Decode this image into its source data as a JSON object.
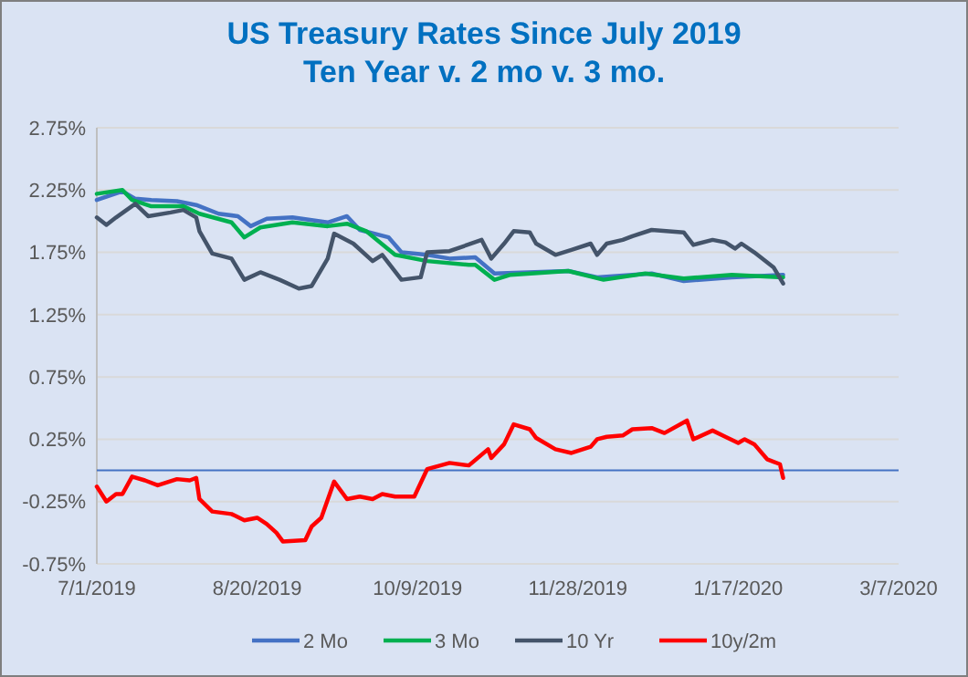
{
  "chart_data": {
    "type": "line",
    "title": "US Treasury Rates Since July 2019",
    "subtitle": "Ten Year v. 2 mo v. 3 mo.",
    "xlim": [
      "2019-07-01",
      "2020-03-07"
    ],
    "xticks": [
      {
        "value": "2019-07-01",
        "label": "7/1/2019"
      },
      {
        "value": "2019-08-20",
        "label": "8/20/2019"
      },
      {
        "value": "2019-10-09",
        "label": "10/9/2019"
      },
      {
        "value": "2019-11-28",
        "label": "11/28/2019"
      },
      {
        "value": "2020-01-17",
        "label": "1/17/2020"
      },
      {
        "value": "2020-03-07",
        "label": "3/7/2020"
      }
    ],
    "ylim": [
      -0.75,
      2.75
    ],
    "yticks": [
      {
        "value": -0.75,
        "label": "-0.75%"
      },
      {
        "value": -0.25,
        "label": "-0.25%"
      },
      {
        "value": 0.25,
        "label": "0.25%"
      },
      {
        "value": 0.75,
        "label": "0.75%"
      },
      {
        "value": 1.25,
        "label": "1.25%"
      },
      {
        "value": 1.75,
        "label": "1.75%"
      },
      {
        "value": 2.25,
        "label": "2.25%"
      },
      {
        "value": 2.75,
        "label": "2.75%"
      }
    ],
    "grid": "y",
    "legend": "bottom",
    "marker": "none",
    "line_style": "solid",
    "ref_lines": [
      {
        "axis": "y",
        "value": 0,
        "color": "#4472c4"
      }
    ],
    "series": [
      {
        "name": "2 Mo",
        "color": "#4472c4",
        "x": [
          "2019-07-01",
          "2019-07-09",
          "2019-07-13",
          "2019-07-18",
          "2019-07-26",
          "2019-08-01",
          "2019-08-08",
          "2019-08-14",
          "2019-08-18",
          "2019-08-23",
          "2019-08-31",
          "2019-09-11",
          "2019-09-17",
          "2019-09-21",
          "2019-09-30",
          "2019-10-04",
          "2019-10-12",
          "2019-10-19",
          "2019-10-27",
          "2019-11-02",
          "2019-11-25",
          "2019-12-04",
          "2019-12-21",
          "2019-12-31",
          "2020-01-15",
          "2020-01-31"
        ],
        "values": [
          2.17,
          2.24,
          2.18,
          2.17,
          2.16,
          2.13,
          2.06,
          2.04,
          1.96,
          2.02,
          2.03,
          1.99,
          2.04,
          1.93,
          1.87,
          1.75,
          1.73,
          1.7,
          1.71,
          1.58,
          1.6,
          1.55,
          1.58,
          1.52,
          1.55,
          1.57
        ]
      },
      {
        "name": "3 Mo",
        "color": "#00b050",
        "x": [
          "2019-07-01",
          "2019-07-09",
          "2019-07-12",
          "2019-07-18",
          "2019-07-28",
          "2019-08-02",
          "2019-08-12",
          "2019-08-16",
          "2019-08-21",
          "2019-08-31",
          "2019-09-11",
          "2019-09-17",
          "2019-09-23",
          "2019-10-02",
          "2019-10-12",
          "2019-10-25",
          "2019-10-27",
          "2019-11-02",
          "2019-11-07",
          "2019-11-25",
          "2019-12-06",
          "2019-12-19",
          "2019-12-31",
          "2020-01-15",
          "2020-01-31"
        ],
        "values": [
          2.22,
          2.25,
          2.17,
          2.12,
          2.12,
          2.06,
          1.99,
          1.87,
          1.95,
          1.99,
          1.96,
          1.98,
          1.92,
          1.73,
          1.68,
          1.65,
          1.65,
          1.53,
          1.57,
          1.6,
          1.53,
          1.58,
          1.54,
          1.57,
          1.55
        ]
      },
      {
        "name": "10 Yr",
        "color": "#44546a",
        "x": [
          "2019-07-01",
          "2019-07-04",
          "2019-07-07",
          "2019-07-13",
          "2019-07-17",
          "2019-07-24",
          "2019-07-28",
          "2019-08-01",
          "2019-08-02",
          "2019-08-06",
          "2019-08-12",
          "2019-08-16",
          "2019-08-21",
          "2019-08-27",
          "2019-09-02",
          "2019-09-06",
          "2019-09-11",
          "2019-09-13",
          "2019-09-19",
          "2019-09-25",
          "2019-09-28",
          "2019-10-04",
          "2019-10-10",
          "2019-10-12",
          "2019-10-19",
          "2019-10-29",
          "2019-11-01",
          "2019-11-05",
          "2019-11-08",
          "2019-11-13",
          "2019-11-15",
          "2019-11-21",
          "2019-11-26",
          "2019-12-02",
          "2019-12-04",
          "2019-12-07",
          "2019-12-12",
          "2019-12-15",
          "2019-12-21",
          "2019-12-31",
          "2020-01-03",
          "2020-01-09",
          "2020-01-13",
          "2020-01-16",
          "2020-01-18",
          "2020-01-22",
          "2020-01-28",
          "2020-01-31"
        ],
        "values": [
          2.03,
          1.97,
          2.03,
          2.14,
          2.04,
          2.07,
          2.09,
          2.03,
          1.92,
          1.74,
          1.7,
          1.53,
          1.59,
          1.53,
          1.46,
          1.48,
          1.7,
          1.9,
          1.82,
          1.68,
          1.73,
          1.53,
          1.55,
          1.75,
          1.76,
          1.85,
          1.7,
          1.82,
          1.92,
          1.91,
          1.82,
          1.73,
          1.77,
          1.82,
          1.73,
          1.82,
          1.85,
          1.88,
          1.93,
          1.91,
          1.81,
          1.85,
          1.83,
          1.78,
          1.82,
          1.75,
          1.63,
          1.5
        ]
      },
      {
        "name": "10y/2m",
        "color": "#ff0000",
        "x": [
          "2019-07-01",
          "2019-07-04",
          "2019-07-07",
          "2019-07-09",
          "2019-07-12",
          "2019-07-16",
          "2019-07-20",
          "2019-07-26",
          "2019-07-30",
          "2019-08-01",
          "2019-08-02",
          "2019-08-06",
          "2019-08-12",
          "2019-08-16",
          "2019-08-20",
          "2019-08-23",
          "2019-08-26",
          "2019-08-28",
          "2019-09-04",
          "2019-09-06",
          "2019-09-09",
          "2019-09-13",
          "2019-09-17",
          "2019-09-21",
          "2019-09-25",
          "2019-09-28",
          "2019-10-02",
          "2019-10-08",
          "2019-10-12",
          "2019-10-19",
          "2019-10-25",
          "2019-10-31",
          "2019-11-01",
          "2019-11-05",
          "2019-11-08",
          "2019-11-13",
          "2019-11-15",
          "2019-11-21",
          "2019-11-26",
          "2019-12-02",
          "2019-12-04",
          "2019-12-07",
          "2019-12-12",
          "2019-12-15",
          "2019-12-21",
          "2019-12-25",
          "2020-01-01",
          "2020-01-03",
          "2020-01-09",
          "2020-01-13",
          "2020-01-17",
          "2020-01-19",
          "2020-01-22",
          "2020-01-26",
          "2020-01-30",
          "2020-01-31"
        ],
        "values": [
          -0.13,
          -0.25,
          -0.19,
          -0.19,
          -0.05,
          -0.08,
          -0.12,
          -0.07,
          -0.08,
          -0.06,
          -0.23,
          -0.33,
          -0.35,
          -0.4,
          -0.38,
          -0.43,
          -0.5,
          -0.57,
          -0.56,
          -0.45,
          -0.38,
          -0.09,
          -0.23,
          -0.21,
          -0.23,
          -0.19,
          -0.21,
          -0.21,
          0.01,
          0.06,
          0.04,
          0.17,
          0.1,
          0.21,
          0.37,
          0.33,
          0.26,
          0.17,
          0.14,
          0.19,
          0.25,
          0.27,
          0.28,
          0.33,
          0.34,
          0.3,
          0.4,
          0.25,
          0.32,
          0.27,
          0.22,
          0.25,
          0.21,
          0.09,
          0.05,
          -0.06
        ]
      }
    ]
  }
}
